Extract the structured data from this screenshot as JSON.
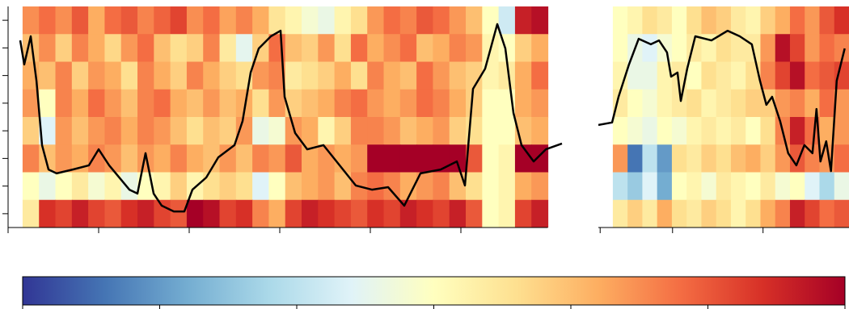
{
  "chart_data": [
    {
      "type": "heatmap",
      "xlim": [
        0,
        615
      ],
      "xticks": [
        0,
        100,
        200,
        300,
        400,
        500
      ],
      "ylim": [
        0,
        8
      ],
      "yticks": [
        0.5,
        1.5,
        2.5,
        3.5,
        4.5,
        5.5,
        6.5,
        7.5
      ],
      "x_extent": [
        16,
        596
      ],
      "z": [
        [
          4.5,
          4.8,
          4.5,
          5,
          4.2,
          4.8,
          5,
          4.6,
          4.9,
          5.2,
          4.5,
          4.8,
          4.3,
          4.6,
          4.2,
          3.5,
          3.2,
          2.8,
          2.6,
          3.2,
          3.6,
          4.4,
          4.8,
          4.6,
          5,
          4.8,
          4.4,
          4,
          3,
          2.2,
          5.6,
          5.8
        ],
        [
          4,
          4.5,
          3.8,
          4.6,
          4.2,
          3.7,
          4.4,
          4.8,
          4,
          3.6,
          3.8,
          4.6,
          3.4,
          2.5,
          3.8,
          4.8,
          4,
          3.8,
          4.4,
          3.6,
          4.8,
          4.2,
          4.5,
          4.8,
          4,
          4.2,
          4.6,
          4.4,
          3.2,
          3,
          3.8,
          4.2
        ],
        [
          4.2,
          4,
          4.6,
          3.8,
          4.4,
          4.2,
          3.6,
          4.6,
          4.2,
          3.8,
          4.6,
          4.2,
          3.8,
          3.6,
          4.4,
          4.6,
          3.4,
          3.6,
          3.8,
          4.2,
          3.6,
          4.6,
          4.2,
          4,
          4.8,
          4.4,
          4,
          3.8,
          3.2,
          3.4,
          4.2,
          4.8
        ],
        [
          4.4,
          3,
          4.6,
          4.2,
          4.8,
          4.4,
          4,
          4.6,
          4.8,
          4.2,
          4,
          4.4,
          4,
          4.2,
          3.6,
          4.4,
          3.8,
          4,
          4.2,
          4.6,
          4.8,
          4.4,
          4.2,
          4.4,
          4.8,
          4.6,
          4.2,
          3.8,
          3,
          3,
          4.2,
          4.4
        ],
        [
          3.8,
          2.4,
          4.4,
          4,
          4.4,
          4.6,
          4.2,
          4.6,
          4.4,
          4,
          3.6,
          4,
          3.8,
          4.4,
          2.6,
          2.8,
          4.4,
          4.2,
          3.2,
          3.8,
          4.6,
          4.6,
          4.4,
          4,
          4.2,
          4.4,
          3.8,
          3.6,
          3,
          3,
          4,
          4.2
        ],
        [
          4.6,
          4,
          4.4,
          4.2,
          4.6,
          4.4,
          4,
          4.4,
          4.2,
          4.6,
          4.2,
          4,
          4.4,
          4,
          4.6,
          4.4,
          5,
          4.2,
          4.4,
          4.2,
          4.4,
          6,
          6,
          6,
          6,
          6,
          6,
          5,
          3,
          3.2,
          6,
          6
        ],
        [
          3,
          2.6,
          3,
          3.4,
          2.8,
          3.2,
          2.6,
          3,
          3.2,
          3.8,
          3.2,
          3.6,
          3.8,
          3.6,
          2.4,
          3,
          4,
          4.2,
          4.4,
          4,
          4.6,
          4.8,
          4.6,
          4.2,
          4.4,
          4.6,
          4,
          3.6,
          3,
          3.2,
          4.2,
          4.4
        ],
        [
          3.4,
          5.4,
          5.2,
          5.6,
          5.2,
          5,
          5.4,
          5.6,
          5.2,
          5,
          6,
          5.8,
          5.2,
          5.4,
          4.6,
          4.2,
          5.2,
          5.6,
          5.4,
          5.2,
          5,
          5.4,
          5.2,
          5.6,
          5.4,
          5.2,
          5.6,
          5,
          3,
          3.2,
          5.2,
          5.6
        ]
      ],
      "line": {
        "color": "#000000",
        "x": [
          13.4,
          17.9,
          25,
          31.3,
          37.5,
          44.6,
          53.6,
          71.4,
          89.3,
          100,
          111.6,
          133.9,
          142.9,
          151.8,
          160.7,
          169.6,
          183,
          194.6,
          203.6,
          218.8,
          232.1,
          250,
          258.9,
          267.9,
          276.8,
          290.2,
          300.9,
          305.4,
          317,
          330.4,
          348.2,
          366.1,
          383.9,
          401.8,
          419.6,
          437.5,
          455.4,
          477.7,
          495.5,
          504.5,
          513.4,
          526.8,
          540.2,
          549.1,
          558,
          567,
          580.4,
          593.8,
          611.6
        ],
        "y": [
          6.77,
          5.9,
          6.92,
          5.31,
          2.98,
          2.1,
          1.96,
          2.1,
          2.25,
          2.83,
          2.25,
          1.37,
          1.23,
          2.69,
          1.23,
          0.79,
          0.58,
          0.58,
          1.37,
          1.81,
          2.54,
          2.98,
          3.85,
          5.61,
          6.48,
          6.92,
          7.12,
          4.73,
          3.42,
          2.83,
          2.98,
          2.25,
          1.52,
          1.37,
          1.46,
          0.79,
          1.96,
          2.1,
          2.39,
          1.52,
          5.02,
          5.75,
          7.36,
          6.48,
          4.15,
          2.98,
          2.39,
          2.83,
          3.04
        ]
      }
    },
    {
      "type": "heatmap",
      "xlim": [
        0,
        277
      ],
      "xticks": [
        2,
        82,
        182
      ],
      "ylim": [
        0,
        8
      ],
      "x_extent": [
        16,
        277
      ],
      "z": [
        [
          3,
          3.2,
          3.6,
          3.4,
          3,
          3.6,
          4,
          3.8,
          3.4,
          3.2,
          3.8,
          4.2,
          4.8,
          4.4,
          5,
          5.4
        ],
        [
          3,
          2.6,
          2.4,
          2.8,
          3,
          3.4,
          3.2,
          3.6,
          3.4,
          3.4,
          4.4,
          5.8,
          5.2,
          4.4,
          4.8,
          4.6
        ],
        [
          3.2,
          2.6,
          2.6,
          3.2,
          3.4,
          3,
          3.6,
          3.4,
          3.2,
          3.6,
          4.6,
          5.2,
          5.8,
          4.8,
          5,
          5.2
        ],
        [
          3.4,
          3,
          2.8,
          3.2,
          3.4,
          3.6,
          3.2,
          3.4,
          3.6,
          3.8,
          3.8,
          4.4,
          4.6,
          4.2,
          4.8,
          4.4
        ],
        [
          3,
          2.8,
          2.6,
          3,
          2.8,
          3.2,
          3.4,
          3.2,
          3.4,
          3,
          3.6,
          4.6,
          5.6,
          4.8,
          4.2,
          4.4
        ],
        [
          4.4,
          0.6,
          2,
          1,
          3.6,
          3.4,
          3.8,
          3.6,
          4,
          4.2,
          3.8,
          4.4,
          5,
          4.6,
          4.4,
          4.8
        ],
        [
          2,
          1.6,
          2.4,
          1.2,
          3,
          3.2,
          2.8,
          3.4,
          3.2,
          3,
          3.4,
          2.8,
          3,
          2.4,
          1.8,
          2.6
        ],
        [
          3.4,
          3.8,
          3.4,
          4.2,
          3.6,
          3.4,
          3.8,
          3.6,
          3.2,
          3.6,
          4.2,
          4.6,
          5.6,
          5.2,
          4.8,
          5
        ]
      ],
      "line": {
        "color": "#000000",
        "x": [
          0,
          15.2,
          22.3,
          33.9,
          44.6,
          58,
          67,
          75.9,
          80.4,
          87.5,
          91.1,
          98.2,
          107.1,
          125,
          142.9,
          156.3,
          169.6,
          178.6,
          185.7,
          192,
          200.9,
          209.8,
          218.8,
          227.7,
          236.6,
          241.1,
          245.5,
          251.8,
          257.1,
          263.4,
          272.3
        ],
        "y": [
          3.71,
          3.8,
          4.73,
          5.9,
          6.83,
          6.63,
          6.77,
          6.34,
          5.46,
          5.61,
          4.58,
          5.75,
          6.92,
          6.77,
          7.12,
          6.92,
          6.63,
          5.31,
          4.44,
          4.73,
          3.85,
          2.69,
          2.25,
          2.98,
          2.69,
          4.29,
          2.39,
          3.12,
          2.04,
          5.31,
          6.48
        ]
      }
    },
    {
      "type": "colorbar",
      "clim": [
        0,
        6
      ],
      "ticks": [
        0,
        1,
        2,
        3,
        4,
        5,
        6
      ],
      "colormap": [
        "#313695",
        "#4575b4",
        "#74add1",
        "#abd9e9",
        "#e0f3f8",
        "#ffffbf",
        "#fee090",
        "#fdae61",
        "#f46d43",
        "#d73027",
        "#a50026"
      ]
    }
  ]
}
